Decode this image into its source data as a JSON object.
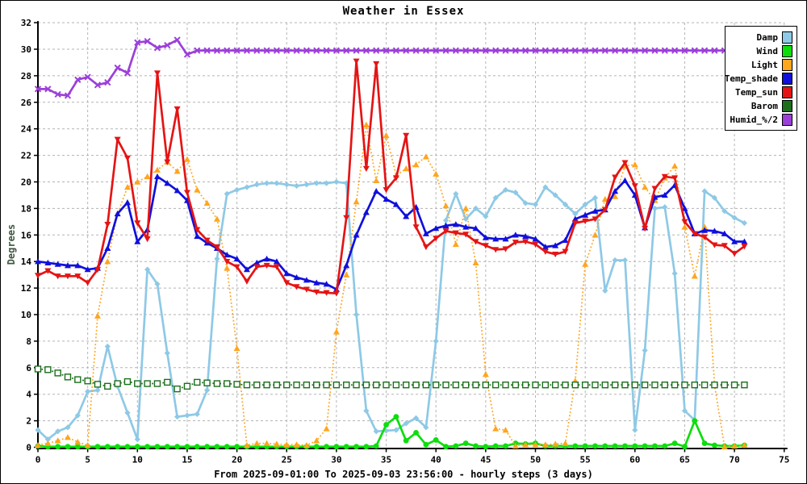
{
  "chart_data": {
    "type": "line",
    "title": "Weather in Essex",
    "ylabel": "Degrees",
    "footer": "From 2025-09-01:00 To 2025-09-03 23:56:00 - hourly steps (3 days)",
    "xlim": [
      0,
      75
    ],
    "ylim": [
      0,
      32
    ],
    "x_ticks": [
      0,
      5,
      10,
      15,
      20,
      25,
      30,
      35,
      40,
      45,
      50,
      55,
      60,
      65,
      70,
      75
    ],
    "y_ticks": [
      0,
      2,
      4,
      6,
      8,
      10,
      12,
      14,
      16,
      18,
      20,
      22,
      24,
      26,
      28,
      30,
      32
    ],
    "grid": true,
    "legend_position": "top-right",
    "x_unit": "hour",
    "x": [
      0,
      1,
      2,
      3,
      4,
      5,
      6,
      7,
      8,
      9,
      10,
      11,
      12,
      13,
      14,
      15,
      16,
      17,
      18,
      19,
      20,
      21,
      22,
      23,
      24,
      25,
      26,
      27,
      28,
      29,
      30,
      31,
      32,
      33,
      34,
      35,
      36,
      37,
      38,
      39,
      40,
      41,
      42,
      43,
      44,
      45,
      46,
      47,
      48,
      49,
      50,
      51,
      52,
      53,
      54,
      55,
      56,
      57,
      58,
      59,
      60,
      61,
      62,
      63,
      64,
      65,
      66,
      67,
      68,
      69,
      70,
      71
    ],
    "series": [
      {
        "name": "Damp",
        "color": "#8EC9E6",
        "style": "solid",
        "marker": "diamond",
        "values": [
          1.3,
          0.6,
          1.2,
          1.5,
          2.4,
          4.2,
          4.3,
          7.6,
          4.6,
          2.6,
          0.6,
          13.4,
          12.3,
          7.1,
          2.3,
          2.4,
          2.5,
          4.3,
          14.2,
          19.1,
          19.4,
          19.6,
          19.8,
          19.9,
          19.9,
          19.8,
          19.7,
          19.8,
          19.9,
          19.9,
          20.0,
          19.9,
          10.0,
          2.75,
          1.2,
          1.25,
          1.3,
          1.8,
          2.2,
          1.5,
          8.0,
          17.1,
          19.1,
          17.2,
          18.0,
          17.4,
          18.8,
          19.4,
          19.2,
          18.4,
          18.3,
          19.6,
          19.0,
          18.3,
          17.6,
          18.3,
          18.8,
          11.8,
          14.1,
          14.1,
          1.3,
          7.3,
          18.0,
          18.1,
          13.1,
          2.75,
          2.05,
          19.3,
          18.8,
          17.8,
          17.3,
          16.9
        ]
      },
      {
        "name": "Wind",
        "color": "#0CDE0C",
        "style": "solid",
        "marker": "circle",
        "values": [
          0.1,
          0.05,
          0.05,
          0.05,
          0.05,
          0.05,
          0.05,
          0.05,
          0.05,
          0.05,
          0.05,
          0.05,
          0.05,
          0.05,
          0.05,
          0.05,
          0.05,
          0.05,
          0.05,
          0.05,
          0.05,
          0.05,
          0.05,
          0.05,
          0.05,
          0.05,
          0.05,
          0.05,
          0.05,
          0.05,
          0.05,
          0.05,
          0.05,
          0.05,
          0.1,
          1.7,
          2.3,
          0.5,
          1.1,
          0.2,
          0.55,
          0.05,
          0.1,
          0.3,
          0.1,
          0.05,
          0.1,
          0.1,
          0.3,
          0.25,
          0.3,
          0.1,
          0.1,
          0.1,
          0.1,
          0.1,
          0.1,
          0.1,
          0.1,
          0.1,
          0.1,
          0.1,
          0.1,
          0.1,
          0.3,
          0.05,
          2.0,
          0.3,
          0.15,
          0.1,
          0.1,
          0.15
        ]
      },
      {
        "name": "Light",
        "color": "#FFA51E",
        "style": "dotted",
        "marker": "triangle-up",
        "values": [
          0.15,
          0.3,
          0.5,
          0.75,
          0.4,
          0.15,
          9.9,
          14.0,
          17.6,
          19.6,
          20.0,
          20.4,
          20.9,
          21.5,
          20.8,
          21.7,
          19.4,
          18.4,
          17.2,
          13.5,
          7.45,
          0.15,
          0.3,
          0.3,
          0.25,
          0.2,
          0.2,
          0.15,
          0.5,
          1.4,
          8.7,
          13.0,
          18.5,
          24.3,
          20.1,
          23.5,
          20.5,
          21.0,
          21.3,
          21.9,
          20.6,
          18.2,
          15.3,
          18.0,
          13.9,
          5.5,
          1.4,
          1.3,
          0.1,
          0.2,
          0.2,
          0.2,
          0.25,
          0.3,
          5.0,
          13.8,
          16.0,
          18.7,
          18.9,
          21.2,
          21.3,
          19.6,
          18.6,
          20.3,
          21.2,
          16.6,
          12.9,
          16.6,
          4.7,
          0.05,
          0.1,
          0.15
        ]
      },
      {
        "name": "Temp_shade",
        "color": "#1010DC",
        "style": "solid",
        "marker": "triangle-up",
        "values": [
          14.0,
          13.9,
          13.8,
          13.7,
          13.7,
          13.4,
          13.5,
          15.0,
          17.6,
          18.45,
          15.5,
          16.4,
          20.4,
          19.9,
          19.35,
          18.6,
          15.9,
          15.4,
          15.0,
          14.5,
          14.2,
          13.4,
          13.9,
          14.2,
          14.0,
          13.1,
          12.8,
          12.6,
          12.4,
          12.3,
          11.9,
          13.7,
          16.0,
          17.7,
          19.3,
          18.7,
          18.3,
          17.4,
          18.1,
          16.1,
          16.5,
          16.7,
          16.8,
          16.6,
          16.5,
          15.8,
          15.7,
          15.7,
          16.0,
          15.9,
          15.7,
          15.1,
          15.2,
          15.6,
          17.2,
          17.5,
          17.8,
          17.9,
          19.3,
          20.1,
          19.0,
          16.55,
          18.85,
          19.0,
          19.75,
          18.0,
          16.1,
          16.35,
          16.3,
          16.1,
          15.5,
          15.5
        ]
      },
      {
        "name": "Temp_sun",
        "color": "#E51414",
        "style": "solid",
        "marker": "triangle-down",
        "values": [
          12.95,
          13.3,
          12.9,
          12.9,
          12.9,
          12.4,
          13.4,
          16.8,
          23.2,
          21.8,
          16.9,
          15.7,
          28.2,
          21.5,
          25.5,
          19.2,
          16.4,
          15.6,
          15.1,
          14.0,
          13.6,
          12.5,
          13.6,
          13.7,
          13.6,
          12.4,
          12.1,
          11.9,
          11.7,
          11.65,
          11.6,
          17.3,
          29.1,
          21.0,
          28.9,
          19.4,
          20.3,
          23.5,
          16.6,
          15.1,
          15.75,
          16.3,
          16.15,
          16.05,
          15.5,
          15.2,
          14.9,
          14.95,
          15.45,
          15.5,
          15.3,
          14.75,
          14.55,
          14.75,
          16.9,
          17.05,
          17.2,
          17.9,
          20.35,
          21.45,
          19.7,
          16.5,
          19.5,
          20.4,
          20.3,
          17.0,
          16.1,
          15.85,
          15.25,
          15.2,
          14.6,
          15.15
        ]
      },
      {
        "name": "Barom",
        "color": "#1C6E1C",
        "style": "dotted",
        "marker": "square-open",
        "values": [
          5.9,
          5.85,
          5.6,
          5.3,
          5.1,
          5.0,
          4.75,
          4.6,
          4.8,
          4.95,
          4.8,
          4.8,
          4.8,
          4.9,
          4.4,
          4.6,
          4.9,
          4.85,
          4.8,
          4.8,
          4.75,
          4.7,
          4.7,
          4.7,
          4.7,
          4.7,
          4.7,
          4.7,
          4.7,
          4.7,
          4.7,
          4.7,
          4.7,
          4.7,
          4.7,
          4.7,
          4.7,
          4.7,
          4.7,
          4.7,
          4.7,
          4.7,
          4.7,
          4.7,
          4.7,
          4.7,
          4.7,
          4.7,
          4.7,
          4.7,
          4.7,
          4.7,
          4.7,
          4.7,
          4.7,
          4.7,
          4.7,
          4.7,
          4.7,
          4.7,
          4.7,
          4.7,
          4.7,
          4.7,
          4.7,
          4.7,
          4.7,
          4.7,
          4.7,
          4.7,
          4.7,
          4.7
        ]
      },
      {
        "name": "Humid_%/2",
        "color": "#9C3FD9",
        "style": "solid",
        "marker": "x-cross",
        "values": [
          27.0,
          27.0,
          26.6,
          26.5,
          27.7,
          27.9,
          27.3,
          27.5,
          28.6,
          28.2,
          30.5,
          30.6,
          30.1,
          30.3,
          30.7,
          29.6,
          29.9,
          29.9,
          29.9,
          29.9,
          29.9,
          29.9,
          29.9,
          29.9,
          29.9,
          29.9,
          29.9,
          29.9,
          29.9,
          29.9,
          29.9,
          29.9,
          29.9,
          29.9,
          29.9,
          29.9,
          29.9,
          29.9,
          29.9,
          29.9,
          29.9,
          29.9,
          29.9,
          29.9,
          29.9,
          29.9,
          29.9,
          29.9,
          29.9,
          29.9,
          29.9,
          29.9,
          29.9,
          29.9,
          29.9,
          29.9,
          29.9,
          29.9,
          29.9,
          29.9,
          29.9,
          29.9,
          29.9,
          29.9,
          29.9,
          29.9,
          29.9,
          29.9,
          29.9,
          29.9,
          29.9,
          29.9
        ]
      }
    ]
  }
}
